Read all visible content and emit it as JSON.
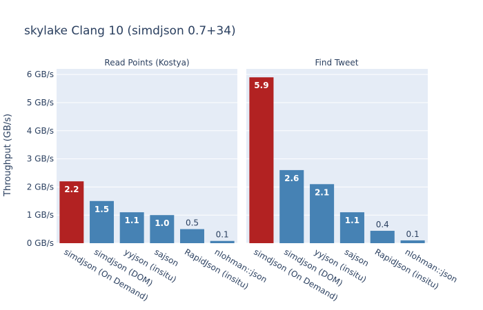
{
  "chart_data": {
    "type": "bar",
    "title": "skylake Clang 10 (simdjson 0.7+34)",
    "ylabel": "Throughput (GB/s)",
    "ylim": [
      0,
      6.2
    ],
    "y_ticks": [
      0,
      1,
      2,
      3,
      4,
      5,
      6
    ],
    "y_tick_labels": [
      "0 GB/s",
      "1 GB/s",
      "2 GB/s",
      "3 GB/s",
      "4 GB/s",
      "5 GB/s",
      "6 GB/s"
    ],
    "grid": true,
    "colors": {
      "highlight": "#b22222",
      "default": "#4682b4",
      "panel_bg": "#e5ecf6"
    },
    "panels": [
      {
        "title": "Read Points (Kostya)",
        "categories": [
          "simdjson (On Demand)",
          "simdjson (DOM)",
          "yyjson (insitu)",
          "sajson",
          "RapidJson (insitu)",
          "nlohman::json"
        ],
        "values": [
          2.2,
          1.5,
          1.1,
          1.0,
          0.5,
          0.08
        ],
        "labels": [
          "2.2",
          "1.5",
          "1.1",
          "1.0",
          "0.5",
          "0.1"
        ]
      },
      {
        "title": "Find Tweet",
        "categories": [
          "simdjson (On Demand)",
          "simdjson (DOM)",
          "yyjson (insitu)",
          "sajson",
          "RapidJson (insitu)",
          "nlohman::json"
        ],
        "values": [
          5.9,
          2.6,
          2.1,
          1.1,
          0.44,
          0.1
        ],
        "labels": [
          "5.9",
          "2.6",
          "2.1",
          "1.1",
          "0.4",
          "0.1"
        ]
      }
    ]
  }
}
